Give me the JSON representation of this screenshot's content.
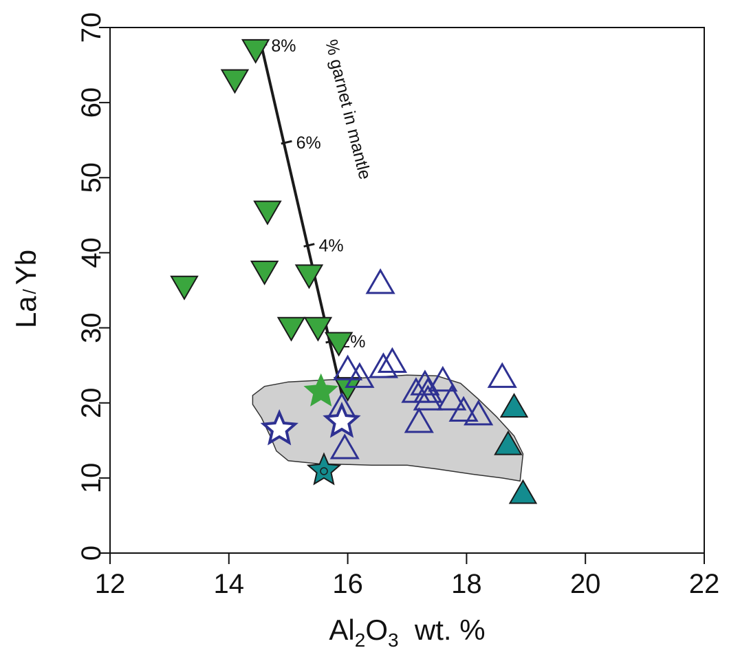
{
  "chart_data": {
    "type": "scatter",
    "title": "",
    "xlabel": {
      "prefix": "Al",
      "sub1": "2",
      "mid": "O",
      "sub2": "3",
      "suffix": "  wt. %"
    },
    "ylabel": {
      "part1": "La",
      "sep": "/",
      "part2": "Yb"
    },
    "xlim": [
      12,
      22
    ],
    "ylim": [
      0,
      70
    ],
    "xticks": [
      12,
      14,
      16,
      18,
      20,
      22
    ],
    "yticks": [
      0,
      10,
      20,
      30,
      40,
      50,
      60,
      70
    ],
    "grid": false,
    "legend": "none",
    "colors": {
      "green_fill": "#3aa63e",
      "teal_fill": "#138c8f",
      "blue_stroke": "#2e3192",
      "field_fill": "#d0d0d0",
      "field_stroke": "#333333",
      "line": "#1a1a1a"
    },
    "field": {
      "polygon": [
        [
          14.4,
          21
        ],
        [
          14.6,
          22.2
        ],
        [
          15.0,
          22.8
        ],
        [
          15.5,
          23.0
        ],
        [
          16.0,
          23.2
        ],
        [
          16.6,
          23.5
        ],
        [
          17.0,
          23.7
        ],
        [
          17.5,
          23.6
        ],
        [
          17.9,
          22.6
        ],
        [
          18.2,
          20.5
        ],
        [
          18.5,
          18.2
        ],
        [
          18.8,
          15.6
        ],
        [
          18.95,
          13.2
        ],
        [
          18.9,
          9.6
        ],
        [
          18.6,
          10.0
        ],
        [
          18.1,
          10.5
        ],
        [
          17.5,
          11.2
        ],
        [
          17.0,
          11.7
        ],
        [
          16.4,
          11.7
        ],
        [
          16.0,
          11.8
        ],
        [
          15.5,
          11.9
        ],
        [
          15.0,
          12.3
        ],
        [
          14.8,
          13.6
        ],
        [
          14.7,
          15.5
        ],
        [
          14.55,
          18.0
        ],
        [
          14.4,
          19.8
        ]
      ]
    },
    "garnet_line": {
      "start": [
        15.9,
        21.2
      ],
      "end": [
        14.55,
        67.5
      ],
      "label": "% garnet in mantle",
      "ticks": [
        {
          "x": 15.72,
          "y": 28.2,
          "label": "2%"
        },
        {
          "x": 15.35,
          "y": 41.0,
          "label": "4%"
        },
        {
          "x": 14.97,
          "y": 54.7,
          "label": "6%"
        },
        {
          "x": 14.55,
          "y": 67.6,
          "label": "8%"
        }
      ]
    },
    "series": [
      {
        "marker": "triangle-down",
        "fill": "#3aa63e",
        "stroke": "#1a1a1a",
        "points": [
          [
            14.45,
            67
          ],
          [
            14.1,
            63
          ],
          [
            14.65,
            45.5
          ],
          [
            14.6,
            37.5
          ],
          [
            15.35,
            37
          ],
          [
            13.25,
            35.5
          ],
          [
            15.05,
            30
          ],
          [
            15.5,
            30
          ],
          [
            15.85,
            28
          ],
          [
            16.0,
            22
          ]
        ]
      },
      {
        "marker": "triangle-up",
        "fill": "none",
        "stroke": "#2e3192",
        "points": [
          [
            16.55,
            36
          ],
          [
            16.0,
            24.5
          ],
          [
            16.2,
            23.5
          ],
          [
            16.6,
            24.8
          ],
          [
            16.75,
            25.5
          ],
          [
            15.9,
            19.5
          ],
          [
            17.15,
            21.5
          ],
          [
            17.3,
            22.5
          ],
          [
            17.35,
            21.5
          ],
          [
            17.35,
            20.5
          ],
          [
            17.6,
            23
          ],
          [
            17.75,
            20.5
          ],
          [
            17.2,
            17.5
          ],
          [
            17.95,
            19
          ],
          [
            18.2,
            18.5
          ],
          [
            18.6,
            23.5
          ],
          [
            15.95,
            14
          ]
        ]
      },
      {
        "marker": "triangle-up",
        "fill": "#138c8f",
        "stroke": "#1a1a1a",
        "points": [
          [
            18.8,
            19.5
          ],
          [
            18.7,
            14.5
          ],
          [
            18.95,
            8
          ]
        ]
      },
      {
        "marker": "star",
        "fill": "#3aa63e",
        "stroke": "#3aa63e",
        "points": [
          [
            15.55,
            21.5
          ]
        ]
      },
      {
        "marker": "star",
        "fill": "#ffffff",
        "stroke": "#2e3192",
        "points": [
          [
            14.85,
            16.5
          ],
          [
            15.9,
            17.5
          ]
        ]
      },
      {
        "marker": "star-dot",
        "fill": "#138c8f",
        "stroke": "#1a1a1a",
        "points": [
          [
            15.6,
            11
          ]
        ]
      }
    ]
  }
}
